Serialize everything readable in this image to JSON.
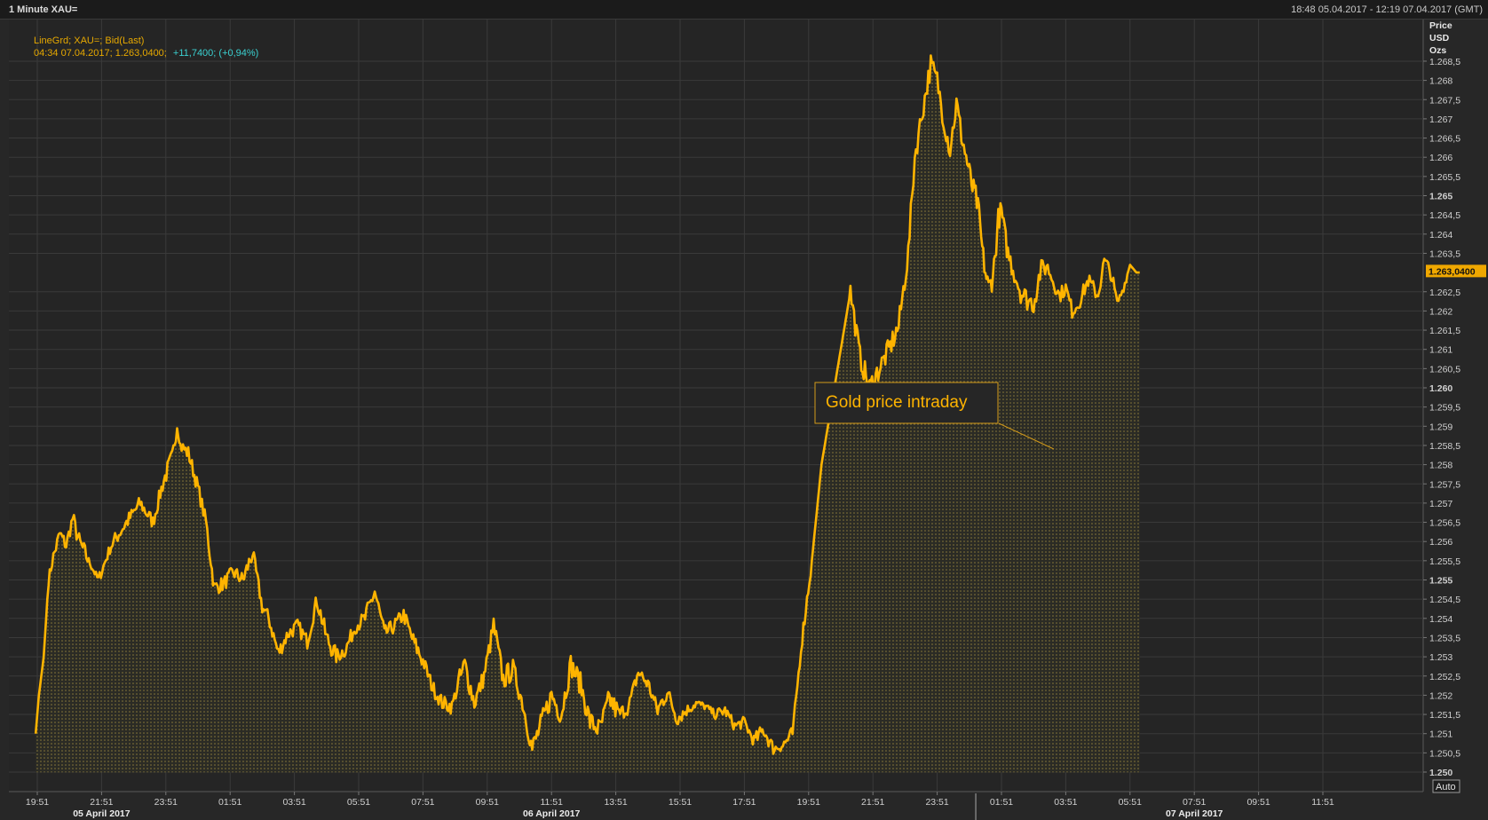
{
  "window": {
    "title": "1 Minute XAU=",
    "date_range": "18:48 05.04.2017 - 12:19 07.04.2017 (GMT)"
  },
  "colors": {
    "background": "#272727",
    "plot_background": "#252525",
    "grid": "#3a3a3a",
    "line": "#ffb400",
    "legend_text": "#e6a800",
    "change_text": "#3ad0d0",
    "axis_text": "#d0d0d0",
    "annotation_border": "#d39a1a"
  },
  "legend": {
    "line1": "LineGrd; XAU=; Bid(Last)",
    "line2_prefix": "04:34 07.04.2017; 1.263,0400;",
    "line2_change": "+11,7400; (+0,94%)"
  },
  "annotation": {
    "text": "Gold price intraday"
  },
  "auto_button": "Auto",
  "chart_data": {
    "type": "area",
    "y_axis_title": [
      "Price",
      "USD",
      "Ozs"
    ],
    "ylim": [
      1249.9,
      1269.1
    ],
    "y_ticks": [
      {
        "v": 1268.5,
        "label": "1.268,5"
      },
      {
        "v": 1268,
        "label": "1.268"
      },
      {
        "v": 1267.5,
        "label": "1.267,5"
      },
      {
        "v": 1267,
        "label": "1.267"
      },
      {
        "v": 1266.5,
        "label": "1.266,5"
      },
      {
        "v": 1266,
        "label": "1.266"
      },
      {
        "v": 1265.5,
        "label": "1.265,5"
      },
      {
        "v": 1265,
        "label": "1.265",
        "bold": true
      },
      {
        "v": 1264.5,
        "label": "1.264,5"
      },
      {
        "v": 1264,
        "label": "1.264"
      },
      {
        "v": 1263.5,
        "label": "1.263,5"
      },
      {
        "v": 1262.5,
        "label": "1.262,5"
      },
      {
        "v": 1262,
        "label": "1.262"
      },
      {
        "v": 1261.5,
        "label": "1.261,5"
      },
      {
        "v": 1261,
        "label": "1.261"
      },
      {
        "v": 1260.5,
        "label": "1.260,5"
      },
      {
        "v": 1260,
        "label": "1.260",
        "bold": true
      },
      {
        "v": 1259.5,
        "label": "1.259,5"
      },
      {
        "v": 1259,
        "label": "1.259"
      },
      {
        "v": 1258.5,
        "label": "1.258,5"
      },
      {
        "v": 1258,
        "label": "1.258"
      },
      {
        "v": 1257.5,
        "label": "1.257,5"
      },
      {
        "v": 1257,
        "label": "1.257"
      },
      {
        "v": 1256.5,
        "label": "1.256,5"
      },
      {
        "v": 1256,
        "label": "1.256"
      },
      {
        "v": 1255.5,
        "label": "1.255,5"
      },
      {
        "v": 1255,
        "label": "1.255",
        "bold": true
      },
      {
        "v": 1254.5,
        "label": "1.254,5"
      },
      {
        "v": 1254,
        "label": "1.254"
      },
      {
        "v": 1253.5,
        "label": "1.253,5"
      },
      {
        "v": 1253,
        "label": "1.253"
      },
      {
        "v": 1252.5,
        "label": "1.252,5"
      },
      {
        "v": 1252,
        "label": "1.252"
      },
      {
        "v": 1251.5,
        "label": "1.251,5"
      },
      {
        "v": 1251,
        "label": "1.251"
      },
      {
        "v": 1250.5,
        "label": "1.250,5"
      },
      {
        "v": 1250,
        "label": "1.250",
        "bold": true
      }
    ],
    "last_value": {
      "v": 1263.04,
      "label": "1.263,0400"
    },
    "x_ticks": [
      "19:51",
      "21:51",
      "23:51",
      "01:51",
      "03:51",
      "05:51",
      "07:51",
      "09:51",
      "11:51",
      "13:51",
      "15:51",
      "17:51",
      "19:51",
      "21:51",
      "23:51",
      "01:51",
      "03:51",
      "05:51",
      "07:51",
      "09:51",
      "11:51"
    ],
    "x_days": [
      {
        "label": "05 April 2017",
        "tick_index": 1
      },
      {
        "label": "06 April 2017",
        "tick_index": 8
      },
      {
        "label": "07 April 2017",
        "tick_index": 18
      }
    ],
    "series": [
      {
        "x_hours": [
          -0.05,
          0.05,
          0.2,
          0.35,
          0.5,
          0.7,
          0.9,
          1.1,
          1.3,
          1.6,
          1.9,
          2.3,
          2.7,
          3.2,
          3.6,
          3.9,
          4.2,
          4.35,
          4.45,
          4.7,
          5.0,
          5.25,
          5.4,
          5.5,
          5.8,
          6.1,
          6.4,
          6.7,
          7.0,
          7.2,
          7.5,
          7.8,
          8.1,
          8.4,
          8.7,
          9.0,
          9.3,
          9.6,
          9.9,
          10.2,
          10.5,
          10.8,
          11.1,
          11.4,
          11.7,
          12.0,
          12.3,
          12.6,
          12.9,
          13.1,
          13.3,
          13.6,
          13.9,
          14.2,
          14.5,
          14.8,
          15.1,
          15.4,
          15.7,
          16.0,
          16.3,
          16.6,
          16.9,
          17.2,
          17.5,
          17.8,
          18.1,
          18.4,
          18.7,
          19.0,
          19.3,
          19.6,
          19.9,
          20.2,
          20.5,
          20.8,
          21.1,
          21.4,
          21.7,
          22.0,
          22.3,
          22.6,
          22.9,
          23.2,
          23.5,
          23.8,
          24.1,
          24.4,
          24.7,
          25.0,
          25.3,
          25.6,
          25.9,
          26.2,
          26.5,
          26.8,
          27.1,
          27.3,
          27.5,
          27.8,
          28.0,
          28.2,
          28.4,
          28.6,
          28.75,
          28.9,
          29.0,
          29.1,
          29.2,
          29.3,
          29.4,
          29.5,
          29.6,
          29.7,
          29.8,
          29.9,
          30.0,
          30.1,
          30.2,
          30.4,
          30.6,
          30.8,
          31.0,
          31.2,
          31.4,
          31.6,
          31.8,
          32.0,
          32.2,
          32.4,
          32.7,
          33.0,
          33.2,
          33.4,
          33.6,
          33.8,
          34.0,
          34.2,
          34.3
        ],
        "values": [
          1251.0,
          1252.0,
          1253.0,
          1255.0,
          1255.6,
          1256.2,
          1255.9,
          1256.6,
          1256.0,
          1255.5,
          1255.0,
          1255.9,
          1256.4,
          1257.0,
          1256.5,
          1257.5,
          1258.2,
          1259.0,
          1258.5,
          1258.3,
          1257.4,
          1256.5,
          1255.5,
          1254.8,
          1254.9,
          1255.2,
          1255.0,
          1255.7,
          1254.3,
          1254.0,
          1253.1,
          1253.6,
          1253.8,
          1253.4,
          1254.5,
          1253.5,
          1253.0,
          1253.2,
          1253.8,
          1254.0,
          1254.7,
          1253.6,
          1253.8,
          1254.1,
          1253.4,
          1252.9,
          1252.2,
          1251.8,
          1251.7,
          1252.3,
          1252.8,
          1251.8,
          1252.5,
          1253.8,
          1252.4,
          1252.7,
          1251.8,
          1250.6,
          1251.3,
          1252.0,
          1251.5,
          1252.8,
          1252.3,
          1251.3,
          1251.1,
          1251.9,
          1251.5,
          1251.7,
          1252.6,
          1252.3,
          1251.6,
          1252.1,
          1251.4,
          1251.6,
          1251.8,
          1251.7,
          1251.5,
          1251.6,
          1251.2,
          1251.3,
          1250.8,
          1251.1,
          1250.6,
          1250.7,
          1251.0,
          1253.5,
          1255.5,
          1258.0,
          1259.5,
          1261.0,
          1262.5,
          1260.8,
          1260.0,
          1260.5,
          1261.0,
          1261.6,
          1263.5,
          1266.0,
          1267.0,
          1268.4,
          1268.0,
          1267.0,
          1266.2,
          1267.4,
          1266.6,
          1266.0,
          1265.6,
          1265.2,
          1265.0,
          1264.5,
          1263.6,
          1263.0,
          1262.6,
          1262.8,
          1263.4,
          1264.4,
          1264.6,
          1264.0,
          1263.5,
          1263.0,
          1262.5,
          1262.3,
          1262.2,
          1263.0,
          1263.2,
          1262.8,
          1262.4,
          1262.6,
          1262.0,
          1262.2,
          1262.8,
          1262.4,
          1263.3,
          1263.0,
          1262.2,
          1262.6,
          1263.2,
          1263.0,
          1263.0
        ],
        "noise": [
          0,
          0,
          0,
          0.15,
          0.2,
          0.2,
          0.2,
          0.25,
          0.25,
          0.1,
          0.15,
          0.2,
          0.2,
          0.2,
          0.2,
          0.25,
          0.2,
          0.1,
          0.2,
          0.2,
          0.2,
          0.25,
          0.2,
          0.2,
          0.2,
          0.2,
          0.25,
          0.2,
          0.2,
          0.2,
          0.2,
          0.2,
          0.2,
          0.2,
          0.25,
          0.25,
          0.2,
          0.2,
          0.2,
          0.25,
          0.25,
          0.2,
          0.2,
          0.2,
          0.25,
          0.2,
          0.2,
          0.2,
          0.2,
          0.3,
          0.3,
          0.25,
          0.25,
          0.3,
          0.3,
          0.25,
          0.25,
          0.3,
          0.3,
          0.3,
          0.3,
          0.3,
          0.3,
          0.3,
          0.3,
          0.3,
          0.2,
          0.2,
          0.2,
          0.2,
          0.25,
          0.2,
          0.2,
          0.15,
          0.1,
          0.1,
          0.15,
          0.15,
          0.15,
          0.15,
          0.2,
          0.2,
          0.15,
          0.2,
          0.15,
          0.2,
          0,
          0,
          0,
          0,
          0.3,
          0.3,
          0.3,
          0.3,
          0.3,
          0.3,
          0.3,
          0.3,
          0.3,
          0.3,
          0.3,
          0.3,
          0.3,
          0.3,
          0.3,
          0.3,
          0.3,
          0.3,
          0.3,
          0.3,
          0.3,
          0.3,
          0.3,
          0.3,
          0.3,
          0.3,
          0.3,
          0.3,
          0.3,
          0.3,
          0.3,
          0.3,
          0.3,
          0.3,
          0.2,
          0.2,
          0.2,
          0.2,
          0.2,
          0.2,
          0.2,
          0.2,
          0.2,
          0.2,
          0.1,
          0.1,
          0,
          0,
          0
        ]
      }
    ]
  }
}
